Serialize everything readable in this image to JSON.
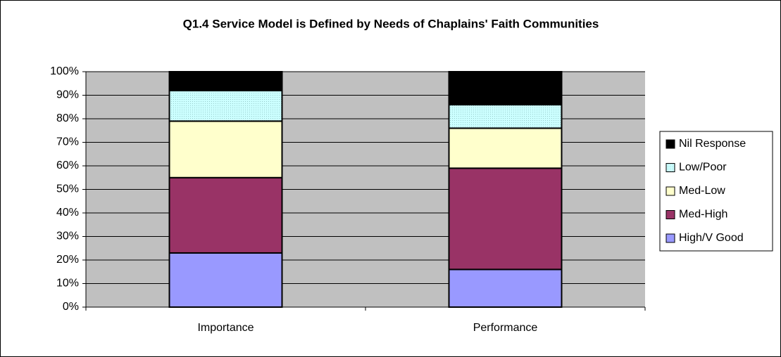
{
  "chart_data": {
    "type": "stacked_bar",
    "title": "Q1.4  Service Model is Defined by Needs of Chaplains' Faith Communities",
    "categories": [
      "Importance",
      "Performance"
    ],
    "series": [
      {
        "name": "High/V Good",
        "color": "#9999ff",
        "values": [
          23,
          16
        ]
      },
      {
        "name": "Med-High",
        "color": "#993366",
        "values": [
          32,
          43
        ]
      },
      {
        "name": "Med-Low",
        "color": "#ffffcc",
        "values": [
          24,
          17
        ]
      },
      {
        "name": "Low/Poor",
        "color": "#ccffff",
        "values": [
          13,
          10
        ]
      },
      {
        "name": "Nil Response",
        "color": "#000000",
        "values": [
          8,
          14
        ]
      }
    ],
    "ylim": [
      0,
      100
    ],
    "yticks": [
      {
        "value": 0,
        "label": "0%"
      },
      {
        "value": 10,
        "label": "10%"
      },
      {
        "value": 20,
        "label": "20%"
      },
      {
        "value": 30,
        "label": "30%"
      },
      {
        "value": 40,
        "label": "40%"
      },
      {
        "value": 50,
        "label": "50%"
      },
      {
        "value": 60,
        "label": "60%"
      },
      {
        "value": 70,
        "label": "70%"
      },
      {
        "value": 80,
        "label": "80%"
      },
      {
        "value": 90,
        "label": "90%"
      },
      {
        "value": 100,
        "label": "100%"
      }
    ],
    "grid": true,
    "legend": "right"
  }
}
